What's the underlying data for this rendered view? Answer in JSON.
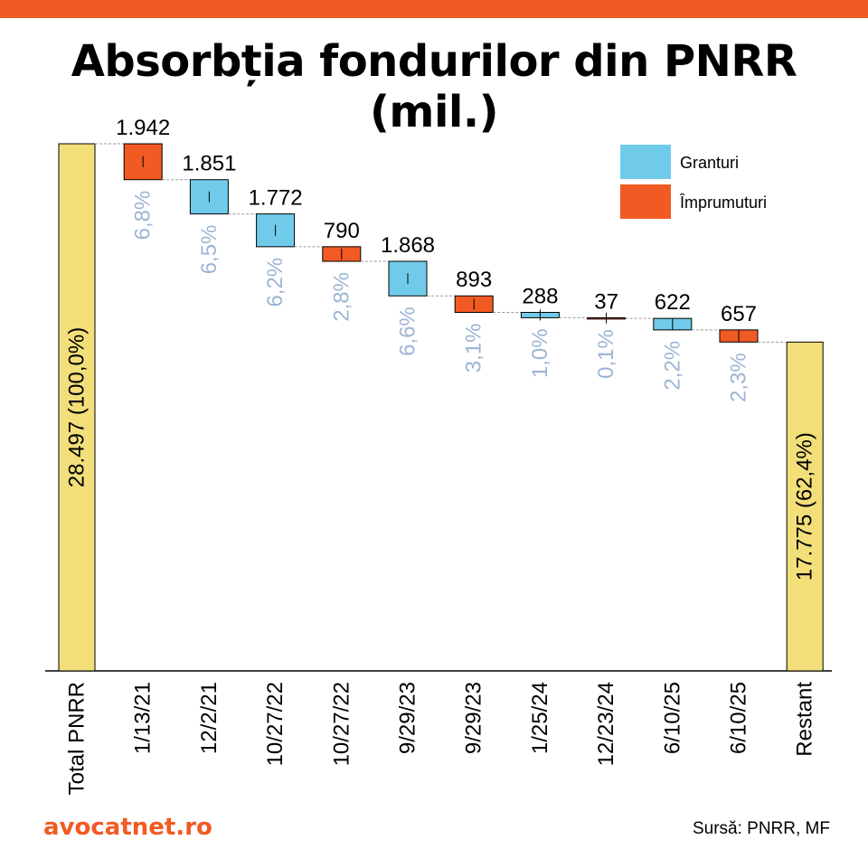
{
  "header": {
    "title": "Absorbția fondurilor din PNRR (mil.)"
  },
  "footer": {
    "brand": "avocatnet.ro",
    "source": "Sursă: PNRR, MF"
  },
  "colors": {
    "brand_orange": "#F15A22",
    "grant": "#70CBEA",
    "loan": "#F15A22",
    "total": "#F2DF79",
    "percent_label": "#9DB4D4"
  },
  "chart_data": {
    "type": "bar",
    "subtype": "waterfall",
    "title": "Absorbția fondurilor din PNRR (mil.)",
    "xlabel": "",
    "ylabel": "",
    "ylim": [
      0,
      28497
    ],
    "grid": false,
    "legend_position": "top-right",
    "legend": [
      {
        "name": "Granturi",
        "color": "#70CBEA"
      },
      {
        "name": "Împrumuturi",
        "color": "#F15A22"
      }
    ],
    "total": {
      "category": "Total PNRR",
      "value": 28497,
      "label": "28.497 (100,0%)"
    },
    "categories": [
      "1/13/21",
      "12/2/21",
      "10/27/22",
      "10/27/22",
      "9/29/23",
      "9/29/23",
      "1/25/24",
      "12/23/24",
      "6/10/25",
      "6/10/25"
    ],
    "steps": [
      {
        "value": 1942,
        "label": "1.942",
        "percent": "6,8%",
        "type": "Împrumuturi"
      },
      {
        "value": 1851,
        "label": "1.851",
        "percent": "6,5%",
        "type": "Granturi"
      },
      {
        "value": 1772,
        "label": "1.772",
        "percent": "6,2%",
        "type": "Granturi"
      },
      {
        "value": 790,
        "label": "790",
        "percent": "2,8%",
        "type": "Împrumuturi"
      },
      {
        "value": 1868,
        "label": "1.868",
        "percent": "6,6%",
        "type": "Granturi"
      },
      {
        "value": 893,
        "label": "893",
        "percent": "3,1%",
        "type": "Împrumuturi"
      },
      {
        "value": 288,
        "label": "288",
        "percent": "1,0%",
        "type": "Granturi"
      },
      {
        "value": 37,
        "label": "37",
        "percent": "0,1%",
        "type": "Împrumuturi"
      },
      {
        "value": 622,
        "label": "622",
        "percent": "2,2%",
        "type": "Granturi"
      },
      {
        "value": 657,
        "label": "657",
        "percent": "2,3%",
        "type": "Împrumuturi"
      }
    ],
    "remaining": {
      "category": "Restant",
      "value": 17775,
      "label": "17.775 (62,4%)"
    }
  }
}
